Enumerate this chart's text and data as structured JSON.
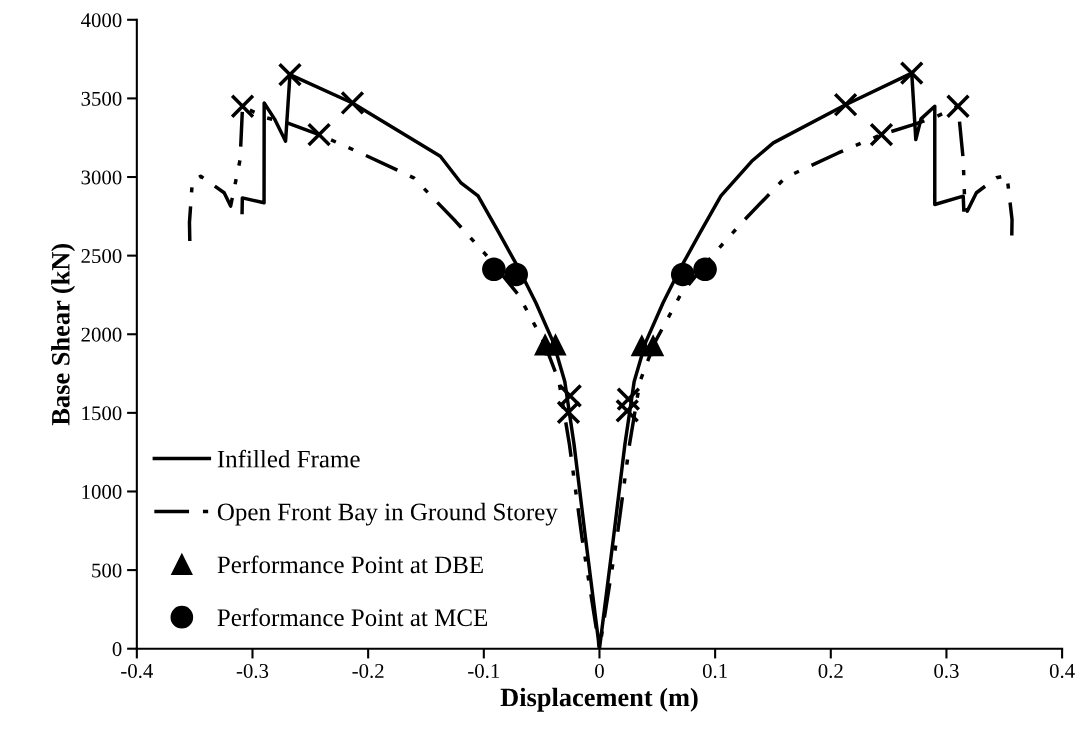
{
  "chart_data": {
    "type": "line",
    "xlabel": "Displacement (m)",
    "ylabel": "Base Shear (kN)",
    "xlim": [
      -0.4,
      0.4
    ],
    "xticks": [
      -0.4,
      -0.3,
      -0.2,
      -0.1,
      0,
      0.1,
      0.2,
      0.3,
      0.4
    ],
    "ylim": [
      0,
      4000
    ],
    "yticks": [
      0,
      500,
      1000,
      1500,
      2000,
      2500,
      3000,
      3500,
      4000
    ],
    "grid": false,
    "legend": "bottom left",
    "marker": "none",
    "series": [
      {
        "name": "Infilled Frame",
        "color": "#000000",
        "line_style": "solid",
        "x": [
          -0.309,
          -0.3088,
          -0.29,
          -0.2899,
          -0.281,
          -0.2714,
          -0.2676,
          -0.2136,
          -0.1376,
          -0.12,
          -0.105,
          -0.087,
          -0.07,
          -0.055,
          -0.04,
          -0.03,
          -0.022,
          -0.012,
          0,
          0.012,
          0.022,
          0.03,
          0.04,
          0.055,
          0.07,
          0.087,
          0.105,
          0.1316,
          0.1503,
          0.2128,
          0.27,
          0.2735,
          0.278,
          0.2899,
          0.2899,
          0.3145,
          0.315
        ],
        "values": [
          2774,
          2867,
          2836,
          3471,
          3370,
          3228,
          3651,
          3471,
          3132,
          2965,
          2880,
          2646,
          2420,
          2200,
          1950,
          1700,
          1300,
          700,
          0,
          700,
          1300,
          1700,
          1950,
          2200,
          2420,
          2646,
          2880,
          3100,
          3217,
          3460,
          3661,
          3238,
          3370,
          3450,
          2825,
          2878,
          2790
        ]
      },
      {
        "name": "Open Front Bay in Ground Storey",
        "color": "#000000",
        "line_style": "dashdot",
        "x": [
          -0.3542,
          -0.3545,
          -0.352,
          -0.3448,
          -0.3245,
          -0.3189,
          -0.3107,
          -0.3086,
          -0.29,
          -0.27,
          -0.2424,
          -0.2066,
          -0.1606,
          -0.1246,
          -0.0985,
          -0.07,
          -0.048,
          -0.035,
          -0.026,
          -0.015,
          0,
          0.015,
          0.026,
          0.035,
          0.048,
          0.07,
          0.0985,
          0.1244,
          0.1604,
          0.2064,
          0.2438,
          0.27,
          0.29,
          0.31,
          0.3145,
          0.3158,
          0.318,
          0.3259,
          0.3432,
          0.3523,
          0.3567,
          0.3565
        ],
        "values": [
          2593,
          2711,
          2973,
          3005,
          2900,
          2815,
          3111,
          3450,
          3380,
          3344,
          3270,
          3153,
          2995,
          2720,
          2508,
          2250,
          1950,
          1700,
          1300,
          700,
          0,
          700,
          1300,
          1700,
          1950,
          2250,
          2508,
          2720,
          2995,
          3153,
          3270,
          3330,
          3380,
          3450,
          3111,
          2836,
          2783,
          2900,
          2995,
          3010,
          2730,
          2628
        ]
      },
      {
        "type": "scatter",
        "name": "Performance Point at DBE",
        "color": "#000000",
        "marker": "triangle",
        "x": [
          -0.047,
          -0.038,
          0.0366,
          0.0464
        ],
        "values": [
          1935,
          1935,
          1930,
          1930
        ]
      },
      {
        "type": "scatter",
        "name": "Performance Point at MCE",
        "color": "#000000",
        "marker": "circle",
        "x": [
          -0.0913,
          -0.072,
          0.072,
          0.0913
        ],
        "values": [
          2413,
          2380,
          2380,
          2413
        ]
      },
      {
        "type": "scatter",
        "color": "#000000",
        "marker": "cross",
        "x": [
          -0.3086,
          -0.2676,
          -0.2424,
          -0.2136,
          -0.0253,
          -0.0268,
          0.025,
          0.024,
          0.2128,
          0.2438,
          0.27,
          0.31
        ],
        "values": [
          3450,
          3651,
          3270,
          3471,
          1608,
          1503,
          1587,
          1513,
          3460,
          3270,
          3661,
          3450
        ]
      }
    ]
  }
}
